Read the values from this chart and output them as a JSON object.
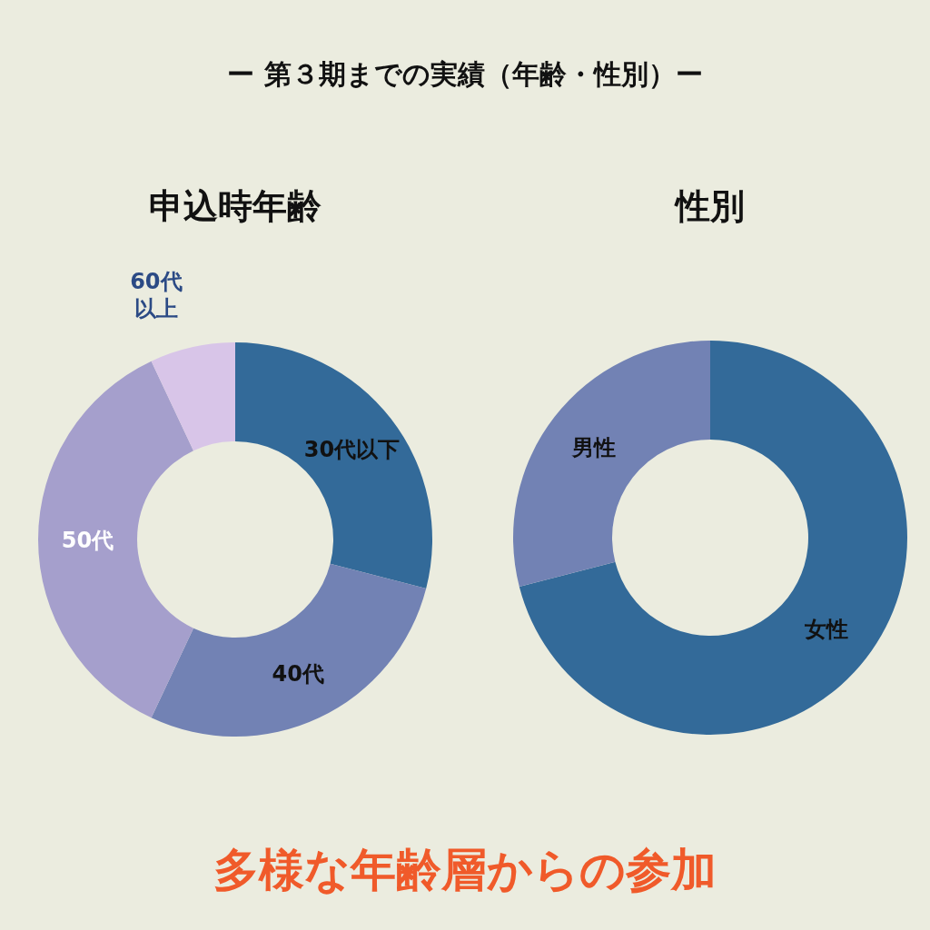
{
  "chart_data": [
    {
      "type": "donut",
      "title": "申込時年齢",
      "categories": [
        "30代以下",
        "40代",
        "50代",
        "60代以上"
      ],
      "values": [
        29,
        28,
        36,
        7
      ],
      "colors": [
        "#336a99",
        "#7282b4",
        "#a59fcc",
        "#d8c5e8"
      ],
      "annotations": [
        "ー 第３期までの実績（年齢・性別）ー",
        "多様な年齢層からの参加"
      ]
    },
    {
      "type": "donut",
      "title": "性別",
      "categories": [
        "女性",
        "男性"
      ],
      "values": [
        71,
        29
      ],
      "colors": [
        "#336a99",
        "#7282b4"
      ]
    }
  ]
}
